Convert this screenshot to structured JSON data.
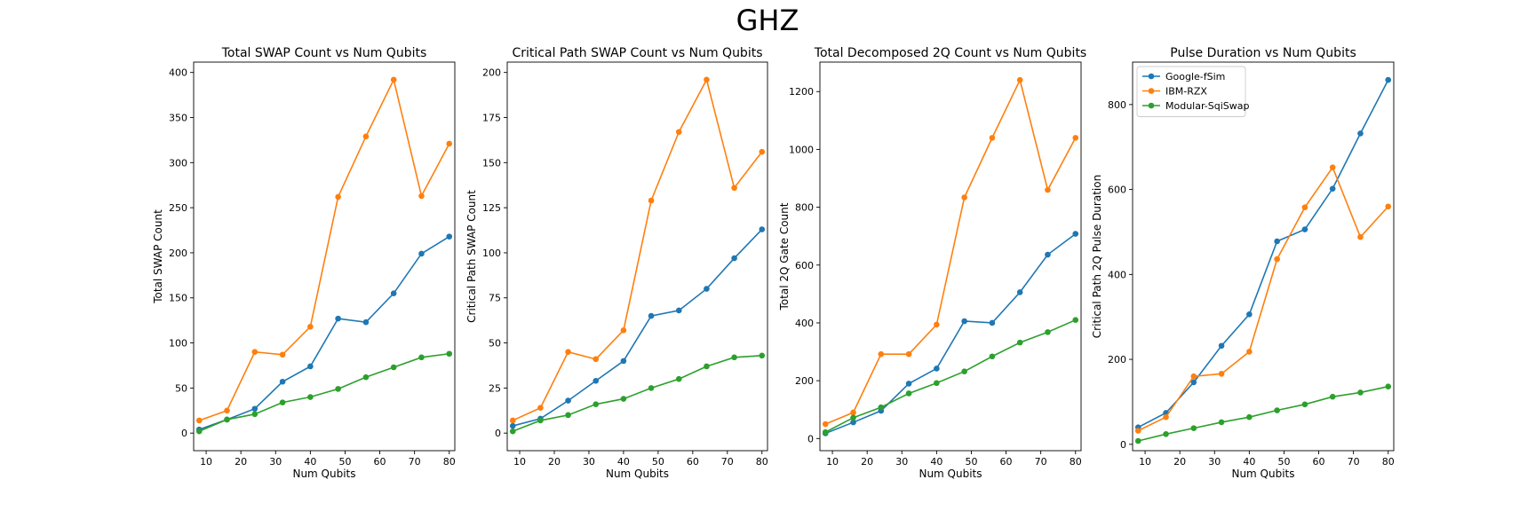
{
  "figure": {
    "title": "GHZ"
  },
  "colors": {
    "Google-fSim": "#1f77b4",
    "IBM-RZX": "#ff7f0e",
    "Modular-SqiSwap": "#2ca02c"
  },
  "chart_data": [
    {
      "type": "line",
      "title": "Total SWAP Count vs Num Qubits",
      "xlabel": "Num Qubits",
      "ylabel": "Total SWAP Count",
      "x": [
        8,
        16,
        24,
        32,
        40,
        48,
        56,
        64,
        72,
        80
      ],
      "xlim": [
        6.4,
        81.6
      ],
      "ylim": [
        -19.5,
        411.5
      ],
      "xticks": [
        10,
        20,
        30,
        40,
        50,
        60,
        70,
        80
      ],
      "yticks": [
        0,
        50,
        100,
        150,
        200,
        250,
        300,
        350,
        400
      ],
      "legend": null,
      "series": [
        {
          "name": "Google-fSim",
          "values": [
            4,
            15,
            27,
            57,
            74,
            127,
            123,
            155,
            199,
            218
          ]
        },
        {
          "name": "IBM-RZX",
          "values": [
            14,
            25,
            90,
            87,
            118,
            262,
            329,
            392,
            263,
            321
          ]
        },
        {
          "name": "Modular-SqiSwap",
          "values": [
            2,
            15,
            21,
            34,
            40,
            49,
            62,
            73,
            84,
            88
          ]
        }
      ]
    },
    {
      "type": "line",
      "title": "Critical Path SWAP Count vs Num Qubits",
      "xlabel": "Num Qubits",
      "ylabel": "Critical Path SWAP Count",
      "x": [
        8,
        16,
        24,
        32,
        40,
        48,
        56,
        64,
        72,
        80
      ],
      "xlim": [
        6.4,
        81.6
      ],
      "ylim": [
        -9.75,
        205.75
      ],
      "xticks": [
        10,
        20,
        30,
        40,
        50,
        60,
        70,
        80
      ],
      "yticks": [
        0,
        25,
        50,
        75,
        100,
        125,
        150,
        175,
        200
      ],
      "legend": null,
      "series": [
        {
          "name": "Google-fSim",
          "values": [
            4,
            8,
            18,
            29,
            40,
            65,
            68,
            80,
            97,
            113
          ]
        },
        {
          "name": "IBM-RZX",
          "values": [
            7,
            14,
            45,
            41,
            57,
            129,
            167,
            196,
            136,
            156
          ]
        },
        {
          "name": "Modular-SqiSwap",
          "values": [
            1,
            7,
            10,
            16,
            19,
            25,
            30,
            37,
            42,
            43
          ]
        }
      ]
    },
    {
      "type": "line",
      "title": "Total Decomposed 2Q Count vs Num Qubits",
      "xlabel": "Num Qubits",
      "ylabel": "Total 2Q Gate Count",
      "x": [
        8,
        16,
        24,
        32,
        40,
        48,
        56,
        64,
        72,
        80
      ],
      "xlim": [
        6.4,
        81.6
      ],
      "ylim": [
        -42,
        1302
      ],
      "xticks": [
        10,
        20,
        30,
        40,
        50,
        60,
        70,
        80
      ],
      "yticks": [
        0,
        200,
        400,
        600,
        800,
        1000,
        1200
      ],
      "legend": null,
      "series": [
        {
          "name": "Google-fSim",
          "values": [
            18,
            56,
            96,
            190,
            242,
            406,
            400,
            506,
            636,
            708
          ]
        },
        {
          "name": "IBM-RZX",
          "values": [
            50,
            90,
            292,
            292,
            394,
            834,
            1040,
            1240,
            860,
            1040
          ]
        },
        {
          "name": "Modular-SqiSwap",
          "values": [
            22,
            72,
            108,
            156,
            192,
            232,
            284,
            332,
            368,
            410
          ]
        }
      ]
    },
    {
      "type": "line",
      "title": "Pulse Duration vs Num Qubits",
      "xlabel": "Num Qubits",
      "ylabel": "Critical Path 2Q Pulse Duration",
      "x": [
        8,
        16,
        24,
        32,
        40,
        48,
        56,
        64,
        72,
        80
      ],
      "xlim": [
        6.4,
        81.6
      ],
      "ylim": [
        -15,
        900
      ],
      "xticks": [
        10,
        20,
        30,
        40,
        50,
        60,
        70,
        80
      ],
      "yticks": [
        0,
        200,
        400,
        600,
        800
      ],
      "legend": "upper-left",
      "series": [
        {
          "name": "Google-fSim",
          "values": [
            40,
            74,
            146,
            232,
            306,
            478,
            506,
            602,
            732,
            858
          ]
        },
        {
          "name": "IBM-RZX",
          "values": [
            32,
            64,
            160,
            166,
            218,
            436,
            558,
            652,
            488,
            560
          ]
        },
        {
          "name": "Modular-SqiSwap",
          "values": [
            8,
            24,
            38,
            52,
            64,
            80,
            94,
            112,
            122,
            136
          ]
        }
      ]
    }
  ]
}
